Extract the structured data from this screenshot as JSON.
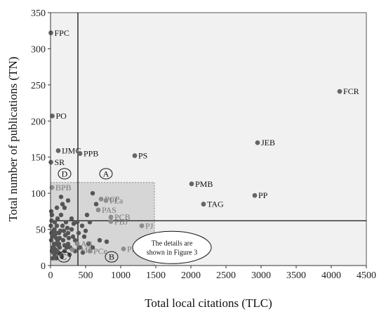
{
  "chart_data": {
    "type": "scatter",
    "title": "",
    "xlabel": "Total local citations (TLC)",
    "ylabel": "Total number of publications (TN)",
    "xlim": [
      0,
      4500
    ],
    "ylim": [
      0,
      350
    ],
    "xticks": [
      0,
      500,
      1000,
      1500,
      2000,
      2500,
      3000,
      3500,
      4000,
      4500
    ],
    "yticks": [
      0,
      50,
      100,
      150,
      200,
      250,
      300,
      350
    ],
    "grid": false,
    "divider_lines": {
      "x": 390,
      "y": 62
    },
    "inset_box": {
      "x": [
        0,
        1480
      ],
      "y": [
        0,
        115
      ]
    },
    "labeled_points": [
      {
        "label": "FPC",
        "x": 5,
        "y": 322,
        "shade": "dark"
      },
      {
        "label": "FCR",
        "x": 4120,
        "y": 241,
        "shade": "dark"
      },
      {
        "label": "PO",
        "x": 25,
        "y": 207,
        "shade": "dark"
      },
      {
        "label": "JEB",
        "x": 2950,
        "y": 170,
        "shade": "dark"
      },
      {
        "label": "IJMC",
        "x": 110,
        "y": 159,
        "shade": "dark"
      },
      {
        "label": "PPB",
        "x": 420,
        "y": 155,
        "shade": "dark"
      },
      {
        "label": "PS",
        "x": 1200,
        "y": 152,
        "shade": "dark"
      },
      {
        "label": "SR",
        "x": 5,
        "y": 143,
        "shade": "dark"
      },
      {
        "label": "PMB",
        "x": 2010,
        "y": 113,
        "shade": "dark"
      },
      {
        "label": "BPB",
        "x": 20,
        "y": 108,
        "shade": "light"
      },
      {
        "label": "PP",
        "x": 2910,
        "y": 97,
        "shade": "dark"
      },
      {
        "label": "PCP",
        "x": 720,
        "y": 92,
        "shade": "light"
      },
      {
        "label": "PLa",
        "x": 790,
        "y": 90,
        "shade": "light"
      },
      {
        "label": "TAG",
        "x": 2180,
        "y": 85,
        "shade": "dark"
      },
      {
        "label": "PAS",
        "x": 680,
        "y": 77,
        "shade": "light"
      },
      {
        "label": "PCB",
        "x": 860,
        "y": 67,
        "shade": "light"
      },
      {
        "label": "PBJ",
        "x": 860,
        "y": 61,
        "shade": "light"
      },
      {
        "label": "PJ",
        "x": 1300,
        "y": 55,
        "shade": "light"
      },
      {
        "label": "AB",
        "x": 380,
        "y": 30,
        "shade": "light"
      },
      {
        "label": "PME",
        "x": 310,
        "y": 22,
        "shade": "light"
      },
      {
        "label": "PCe",
        "x": 560,
        "y": 20,
        "shade": "light"
      },
      {
        "label": "PNA",
        "x": 1040,
        "y": 23,
        "shade": "light"
      }
    ],
    "cluster_points": [
      [
        10,
        75
      ],
      [
        20,
        70
      ],
      [
        15,
        62
      ],
      [
        5,
        55
      ],
      [
        40,
        48
      ],
      [
        60,
        42
      ],
      [
        25,
        40
      ],
      [
        80,
        38
      ],
      [
        100,
        35
      ],
      [
        120,
        30
      ],
      [
        50,
        30
      ],
      [
        30,
        25
      ],
      [
        70,
        22
      ],
      [
        90,
        20
      ],
      [
        110,
        18
      ],
      [
        150,
        15
      ],
      [
        200,
        28
      ],
      [
        180,
        35
      ],
      [
        250,
        45
      ],
      [
        300,
        50
      ],
      [
        220,
        60
      ],
      [
        170,
        55
      ],
      [
        140,
        48
      ],
      [
        260,
        38
      ],
      [
        320,
        40
      ],
      [
        350,
        35
      ],
      [
        60,
        15
      ],
      [
        130,
        25
      ],
      [
        40,
        18
      ],
      [
        200,
        20
      ],
      [
        160,
        12
      ],
      [
        80,
        10
      ],
      [
        30,
        10
      ],
      [
        20,
        20
      ],
      [
        250,
        30
      ],
      [
        280,
        25
      ],
      [
        120,
        45
      ],
      [
        90,
        55
      ],
      [
        60,
        60
      ],
      [
        150,
        70
      ],
      [
        200,
        80
      ],
      [
        250,
        90
      ],
      [
        300,
        65
      ],
      [
        330,
        58
      ],
      [
        100,
        65
      ],
      [
        170,
        85
      ],
      [
        90,
        80
      ],
      [
        150,
        95
      ],
      [
        600,
        100
      ],
      [
        650,
        85
      ],
      [
        560,
        60
      ],
      [
        500,
        48
      ],
      [
        480,
        40
      ],
      [
        700,
        35
      ],
      [
        420,
        25
      ],
      [
        460,
        18
      ],
      [
        600,
        25
      ],
      [
        540,
        30
      ],
      [
        800,
        33
      ],
      [
        450,
        55
      ],
      [
        520,
        70
      ],
      [
        350,
        20
      ],
      [
        400,
        45
      ],
      [
        380,
        60
      ],
      [
        10,
        35
      ],
      [
        15,
        45
      ],
      [
        45,
        25
      ],
      [
        70,
        30
      ],
      [
        110,
        28
      ],
      [
        130,
        38
      ],
      [
        55,
        50
      ],
      [
        85,
        45
      ],
      [
        210,
        42
      ],
      [
        240,
        52
      ],
      [
        190,
        48
      ],
      [
        230,
        25
      ],
      [
        270,
        15
      ]
    ],
    "region_labels": [
      {
        "letter": "A",
        "x": 790,
        "y": 127
      },
      {
        "letter": "B",
        "x": 870,
        "y": 12
      },
      {
        "letter": "C",
        "x": 190,
        "y": 12
      },
      {
        "letter": "D",
        "x": 200,
        "y": 127
      }
    ],
    "annotation": {
      "lines": [
        "The details are",
        "shown in Figure 3"
      ],
      "center_x": 1730,
      "center_y": 25
    }
  }
}
